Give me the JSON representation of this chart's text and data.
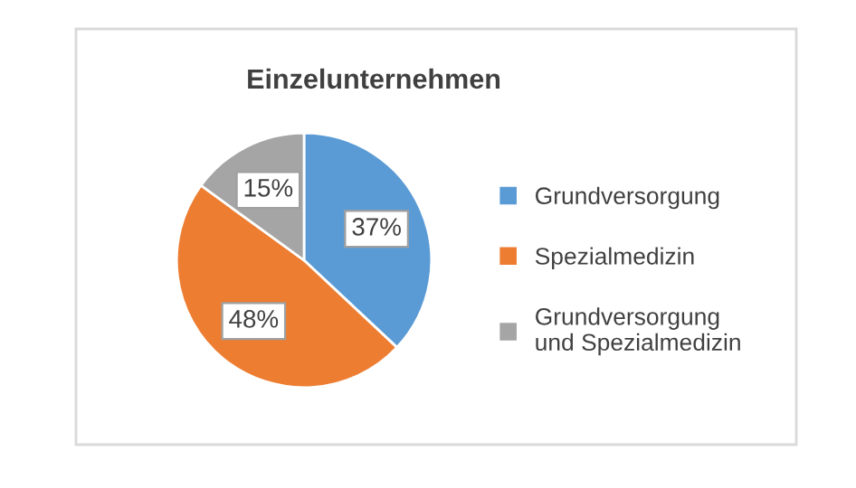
{
  "chart_data": {
    "type": "pie",
    "title": "Einzelunternehmen",
    "categories": [
      "Grundversorgung",
      "Spezialmedizin",
      "Grundversorgung\nund Spezialmedizin"
    ],
    "values": [
      37,
      48,
      15
    ],
    "colors": [
      "#5b9bd5",
      "#ed7d31",
      "#a5a5a5"
    ],
    "value_labels": [
      "37%",
      "48%",
      "15%"
    ],
    "legend": "right"
  }
}
